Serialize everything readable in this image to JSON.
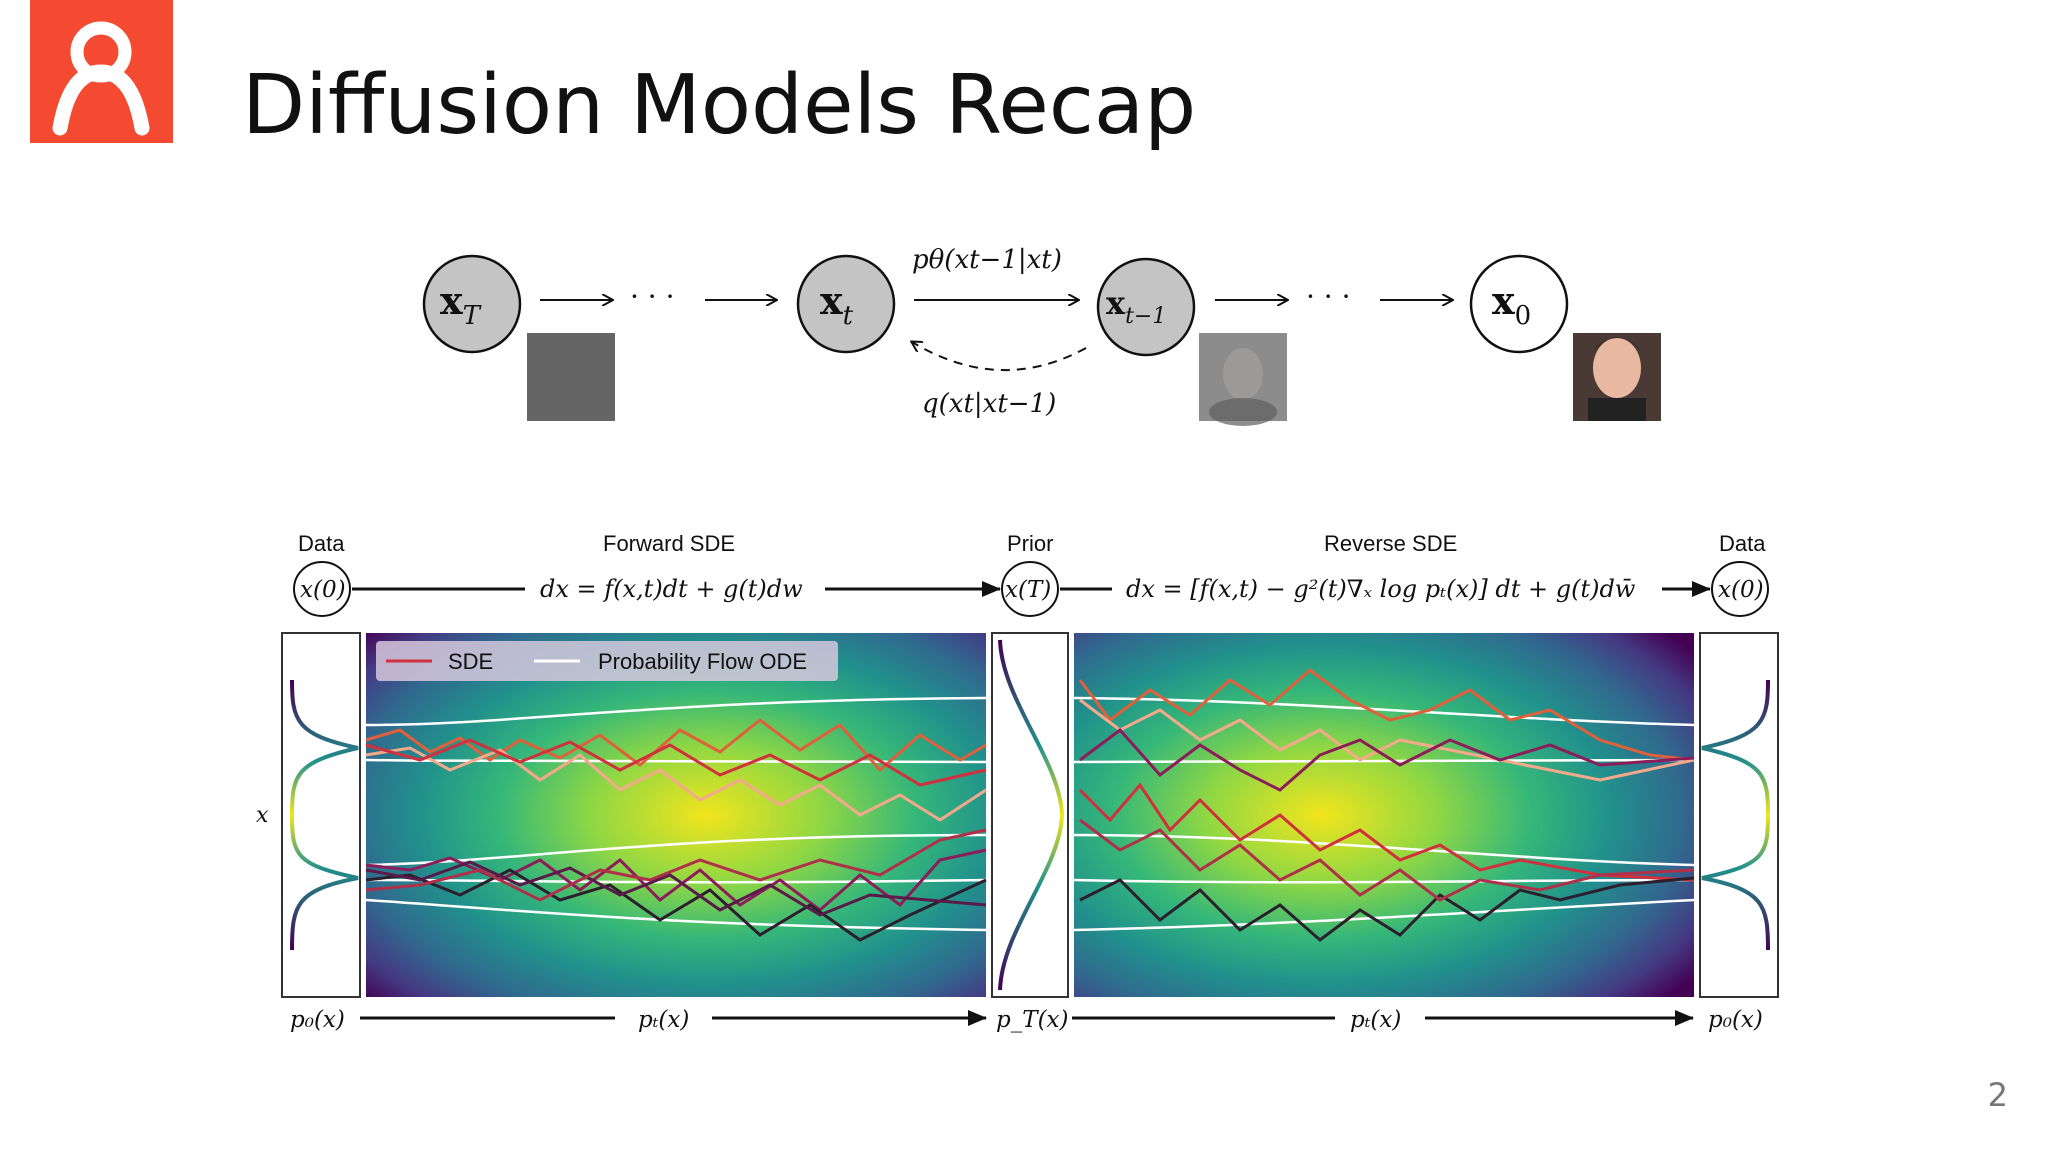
{
  "slide": {
    "title": "Diffusion Models Recap",
    "page_number": "2",
    "accent_color": "#f44a32"
  },
  "chain": {
    "node_xT": "x",
    "node_xT_sub": "T",
    "node_xt": "x",
    "node_xt_sub": "t",
    "node_xt1": "x",
    "node_xt1_sub": "t−1",
    "node_x0": "x",
    "node_x0_sub": "0",
    "ellipsis": "· · ·",
    "reverse_label": "pθ(xt−1|xt)",
    "forward_label": "q(xt|xt−1)"
  },
  "sde": {
    "top_labels": {
      "data_left": "Data",
      "forward": "Forward SDE",
      "prior": "Prior",
      "reverse": "Reverse SDE",
      "data_right": "Data"
    },
    "nodes": {
      "x0_left": "x(0)",
      "xT": "x(T)",
      "x0_right": "x(0)"
    },
    "forward_eq": "dx = f(x,t)dt + g(t)dw",
    "reverse_eq": "dx = [f(x,t) − g²(t)∇ₓ log pₜ(x)] dt + g(t)dw̄",
    "y_axis": "x",
    "legend": {
      "sde": "SDE",
      "ode": "Probability Flow ODE"
    },
    "bottom": {
      "p0_left": "p₀(x)",
      "pt_left": "pₜ(x)",
      "pT": "p_T(x)",
      "pt_right": "pₜ(x)",
      "p0_right": "p₀(x)"
    }
  }
}
